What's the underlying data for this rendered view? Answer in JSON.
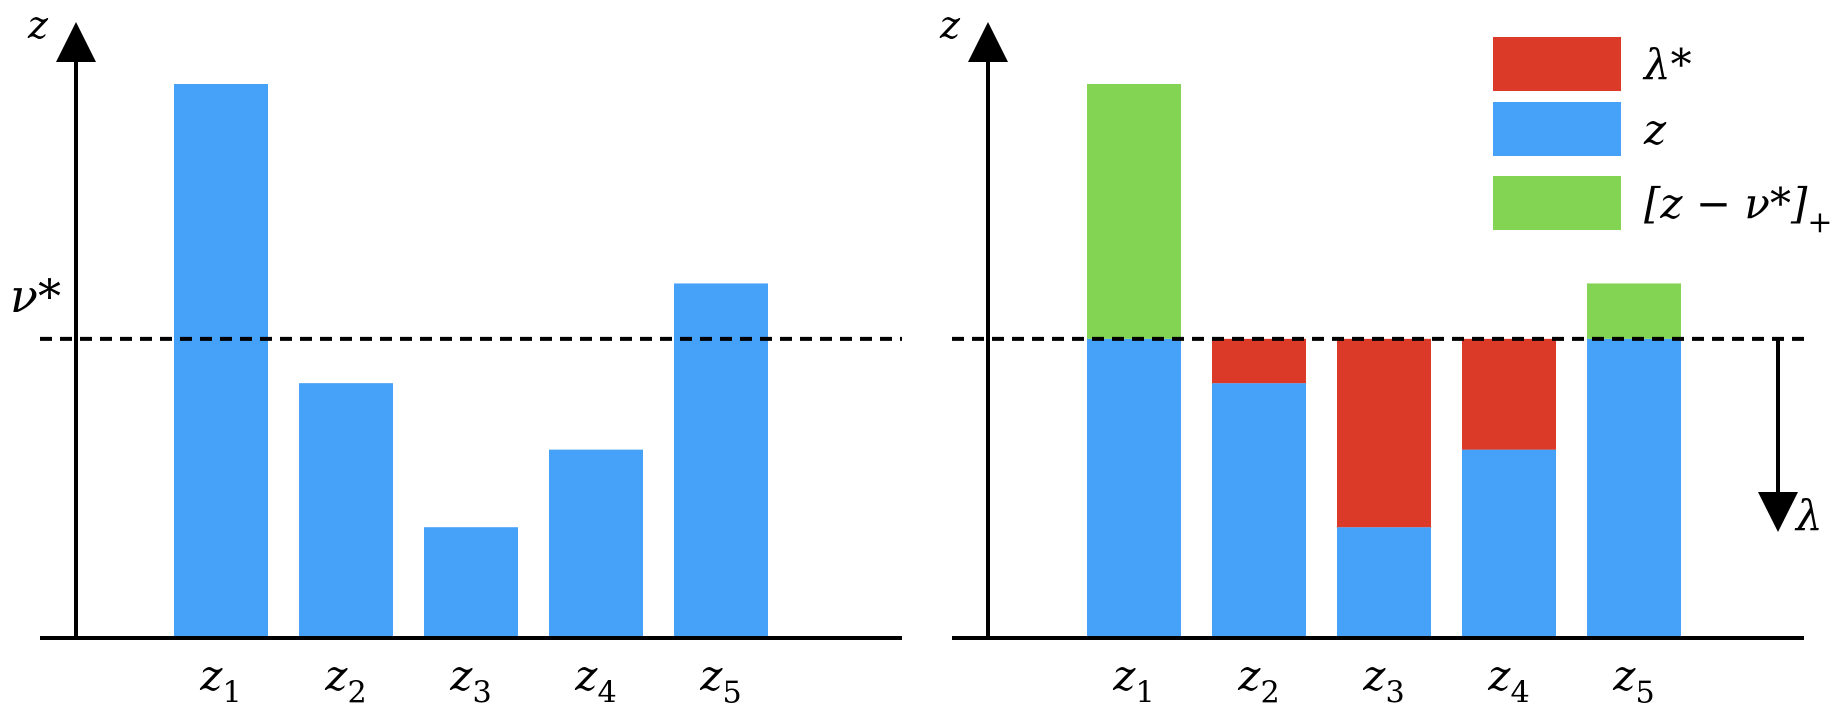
{
  "colors": {
    "z": "#46a1f8",
    "lambda_star": "#db3a28",
    "z_minus_nu_plus": "#82d452",
    "axis": "#000000"
  },
  "left_panel": {
    "y_axis_label": "z",
    "threshold_label": "ν*"
  },
  "right_panel": {
    "y_axis_label": "z",
    "arrow_label": "λ"
  },
  "legend": {
    "placement": "top-right",
    "items": [
      {
        "key": "lambda_star",
        "base": "λ*",
        "sub": ""
      },
      {
        "key": "z",
        "base": "z",
        "sub": ""
      },
      {
        "key": "z_minus_nu_plus",
        "base": "[z − ν*]",
        "sub": "+"
      }
    ]
  },
  "chart_data": {
    "type": "bar",
    "categories": [
      {
        "base": "z",
        "sub": "1"
      },
      {
        "base": "z",
        "sub": "2"
      },
      {
        "base": "z",
        "sub": "3"
      },
      {
        "base": "z",
        "sub": "4"
      },
      {
        "base": "z",
        "sub": "5"
      }
    ],
    "z_values": [
      5.0,
      2.3,
      1.0,
      1.7,
      3.2
    ],
    "nu_star": 2.7,
    "ylim": [
      0,
      5.3
    ]
  }
}
